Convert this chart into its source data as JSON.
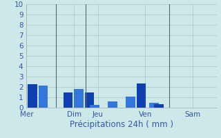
{
  "xlabel": "Précipitations 24h ( mm )",
  "ylim": [
    0,
    10
  ],
  "yticks": [
    0,
    1,
    2,
    3,
    4,
    5,
    6,
    7,
    8,
    9,
    10
  ],
  "background_color": "#cce8e8",
  "grid_color": "#aacccc",
  "day_labels": [
    "Mer",
    "Dim",
    "Jeu",
    "Ven",
    "Sam"
  ],
  "day_tick_positions": [
    0,
    8,
    12,
    20,
    28
  ],
  "vline_positions": [
    5,
    10,
    24
  ],
  "vline_color": "#556677",
  "bar_width": 1.6,
  "xlim": [
    0,
    32
  ],
  "bars": [
    {
      "x": 1.0,
      "height": 2.3,
      "color": "#1040b0"
    },
    {
      "x": 2.8,
      "height": 2.15,
      "color": "#3377dd"
    },
    {
      "x": 7.0,
      "height": 1.5,
      "color": "#1040b0"
    },
    {
      "x": 8.8,
      "height": 1.8,
      "color": "#3377dd"
    },
    {
      "x": 10.6,
      "height": 1.5,
      "color": "#1040b0"
    },
    {
      "x": 11.5,
      "height": 0.3,
      "color": "#3377dd"
    },
    {
      "x": 14.5,
      "height": 0.6,
      "color": "#3377dd"
    },
    {
      "x": 17.5,
      "height": 1.05,
      "color": "#3377dd"
    },
    {
      "x": 19.3,
      "height": 2.35,
      "color": "#1040b0"
    },
    {
      "x": 21.5,
      "height": 0.45,
      "color": "#3377dd"
    },
    {
      "x": 22.3,
      "height": 0.35,
      "color": "#1040b0"
    }
  ],
  "xlabel_color": "#3355aa",
  "xlabel_fontsize": 8.5,
  "tick_label_color": "#3355aa",
  "ytick_fontsize": 7.5,
  "xtick_fontsize": 7.5
}
